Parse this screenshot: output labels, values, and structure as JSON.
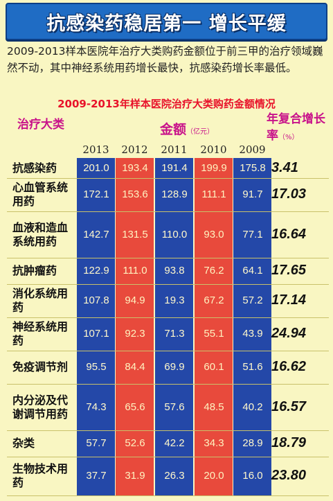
{
  "banner": {
    "title": "抗感染药稳居第一 增长平缓"
  },
  "intro": {
    "text": "2009-2013样本医院年治疗大类购药金额位于前三甲的治疗领域巍然不动，其中神经系统用药增长最快，抗感染药增长率最低。"
  },
  "chart_data": {
    "type": "table",
    "title": "2009-2013年样本医院治疗大类购药金额情况",
    "category_header": "治疗大类",
    "amount_header": "金额",
    "amount_unit": "（亿元）",
    "cagr_header": "年复合增长率",
    "cagr_unit": "（%）",
    "years": [
      "2013",
      "2012",
      "2011",
      "2010",
      "2009"
    ],
    "column_colors": [
      "#2448a8",
      "#e84a3c",
      "#2448a8",
      "#e84a3c",
      "#2448a8"
    ],
    "rows": [
      {
        "category": "抗感染药",
        "values": [
          "201.0",
          "193.4",
          "191.4",
          "199.9",
          "175.8"
        ],
        "cagr": "3.41"
      },
      {
        "category": "心血管系统用药",
        "values": [
          "172.1",
          "153.6",
          "128.9",
          "111.1",
          "91.7"
        ],
        "cagr": "17.03"
      },
      {
        "category": "血液和造血系统用药",
        "values": [
          "142.7",
          "131.5",
          "110.0",
          "93.0",
          "77.1"
        ],
        "cagr": "16.64"
      },
      {
        "category": "抗肿瘤药",
        "values": [
          "122.9",
          "111.0",
          "93.8",
          "76.2",
          "64.1"
        ],
        "cagr": "17.65"
      },
      {
        "category": "消化系统用药",
        "values": [
          "107.8",
          "94.9",
          "19.3",
          "67.2",
          "57.2"
        ],
        "cagr": "17.14"
      },
      {
        "category": "神经系统用药",
        "values": [
          "107.1",
          "92.3",
          "71.3",
          "55.1",
          "43.9"
        ],
        "cagr": "24.94"
      },
      {
        "category": "免疫调节剂",
        "values": [
          "95.5",
          "84.4",
          "69.9",
          "60.1",
          "51.6"
        ],
        "cagr": "16.62"
      },
      {
        "category": "内分泌及代谢调节用药",
        "values": [
          "74.3",
          "65.6",
          "57.6",
          "48.5",
          "40.2"
        ],
        "cagr": "16.57"
      },
      {
        "category": "杂类",
        "values": [
          "57.7",
          "52.6",
          "42.2",
          "34.3",
          "28.9"
        ],
        "cagr": "18.79"
      },
      {
        "category": "生物技术用药",
        "values": [
          "37.7",
          "31.9",
          "26.3",
          "20.0",
          "16.0"
        ],
        "cagr": "23.80"
      }
    ]
  }
}
